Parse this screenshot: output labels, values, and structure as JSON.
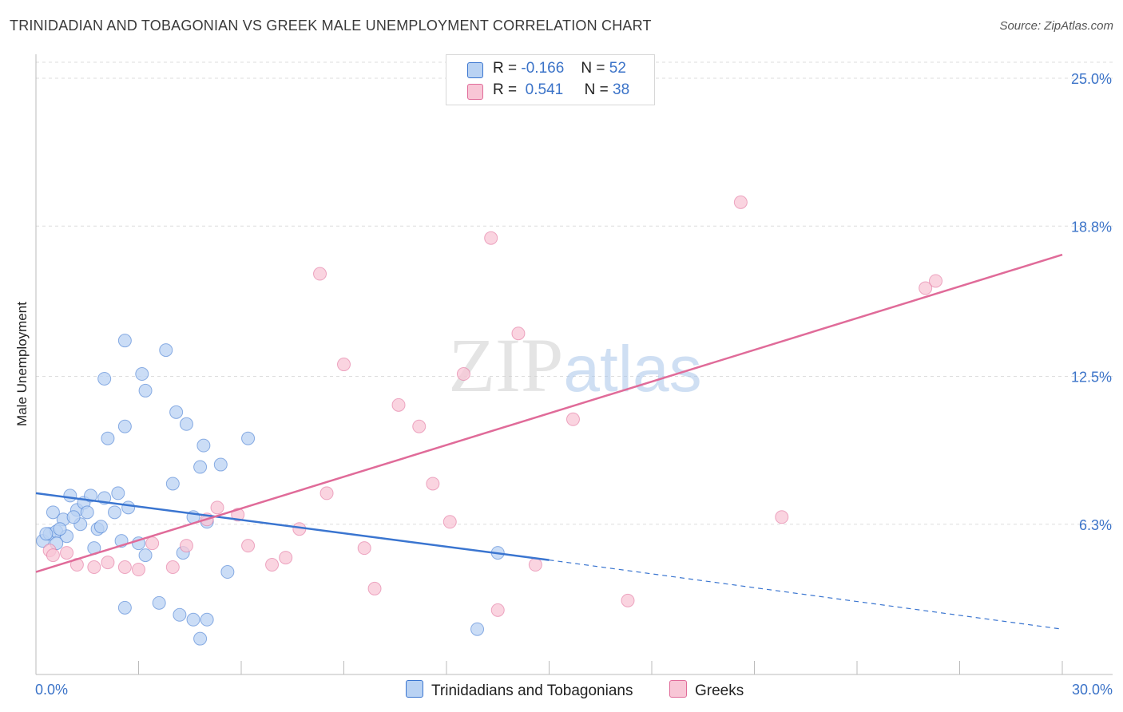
{
  "chart_data": {
    "type": "scatter",
    "title": "TRINIDADIAN AND TOBAGONIAN VS GREEK MALE UNEMPLOYMENT CORRELATION CHART",
    "source": "Source: ZipAtlas.com",
    "xlabel": "",
    "ylabel": "Male Unemployment",
    "xlim": [
      0,
      30
    ],
    "ylim": [
      0,
      25
    ],
    "x_tick_labels": [
      "0.0%",
      "30.0%"
    ],
    "y_ticks": [
      6.3,
      12.5,
      18.8,
      25.0
    ],
    "y_tick_labels": [
      "6.3%",
      "12.5%",
      "18.8%",
      "25.0%"
    ],
    "watermark": "ZIPatlas",
    "colors": {
      "blue": "#3a75d0",
      "blue_fill": "#b9d2f3",
      "pink": "#e06b99",
      "pink_fill": "#f8c6d6",
      "axis_text": "#3b73c8"
    },
    "legend": [
      {
        "r_label": "R =",
        "r_value": "-0.166",
        "n_label": "N =",
        "n_value": "52"
      },
      {
        "r_label": "R =",
        "r_value": "0.541",
        "n_label": "N =",
        "n_value": "38"
      }
    ],
    "series": [
      {
        "name": "Trinidadians and Tobagonians",
        "color": "#3a75d0",
        "trend": {
          "x0": 0,
          "y0": 7.6,
          "x1": 15,
          "y1": 4.8,
          "dash_to_x": 30,
          "dash_to_y": 1.9
        },
        "points": [
          [
            0.2,
            5.6
          ],
          [
            0.4,
            5.9
          ],
          [
            0.6,
            6.0
          ],
          [
            0.5,
            6.8
          ],
          [
            0.8,
            6.5
          ],
          [
            0.9,
            5.8
          ],
          [
            1.0,
            7.5
          ],
          [
            1.2,
            6.9
          ],
          [
            1.3,
            6.3
          ],
          [
            1.4,
            7.2
          ],
          [
            1.5,
            6.8
          ],
          [
            1.6,
            7.5
          ],
          [
            1.8,
            6.1
          ],
          [
            1.9,
            6.2
          ],
          [
            2.0,
            7.4
          ],
          [
            2.3,
            6.8
          ],
          [
            2.4,
            7.6
          ],
          [
            2.5,
            5.6
          ],
          [
            2.7,
            7.0
          ],
          [
            3.0,
            5.5
          ],
          [
            3.2,
            5.0
          ],
          [
            1.7,
            5.3
          ],
          [
            2.6,
            2.8
          ],
          [
            3.6,
            3.0
          ],
          [
            4.2,
            2.5
          ],
          [
            4.6,
            2.3
          ],
          [
            5.0,
            2.3
          ],
          [
            4.8,
            1.5
          ],
          [
            5.6,
            4.3
          ],
          [
            4.3,
            5.1
          ],
          [
            4.6,
            6.6
          ],
          [
            5.0,
            6.4
          ],
          [
            4.0,
            8.0
          ],
          [
            4.8,
            8.7
          ],
          [
            5.4,
            8.8
          ],
          [
            4.9,
            9.6
          ],
          [
            6.2,
            9.9
          ],
          [
            2.1,
            9.9
          ],
          [
            2.6,
            10.4
          ],
          [
            4.1,
            11.0
          ],
          [
            4.4,
            10.5
          ],
          [
            3.2,
            11.9
          ],
          [
            2.0,
            12.4
          ],
          [
            3.1,
            12.6
          ],
          [
            2.6,
            14.0
          ],
          [
            3.8,
            13.6
          ],
          [
            1.1,
            6.6
          ],
          [
            0.3,
            5.9
          ],
          [
            0.7,
            6.1
          ],
          [
            13.5,
            5.1
          ],
          [
            12.9,
            1.9
          ],
          [
            0.6,
            5.5
          ]
        ]
      },
      {
        "name": "Greeks",
        "color": "#e06b99",
        "trend": {
          "x0": 0,
          "y0": 4.3,
          "x1": 30,
          "y1": 17.6
        },
        "points": [
          [
            0.4,
            5.2
          ],
          [
            1.2,
            4.6
          ],
          [
            1.7,
            4.5
          ],
          [
            2.1,
            4.7
          ],
          [
            2.6,
            4.5
          ],
          [
            3.0,
            4.4
          ],
          [
            3.4,
            5.5
          ],
          [
            4.0,
            4.5
          ],
          [
            4.4,
            5.4
          ],
          [
            5.0,
            6.5
          ],
          [
            5.3,
            7.0
          ],
          [
            5.9,
            6.7
          ],
          [
            6.2,
            5.4
          ],
          [
            6.9,
            4.6
          ],
          [
            7.3,
            4.9
          ],
          [
            7.7,
            6.1
          ],
          [
            8.3,
            16.8
          ],
          [
            8.5,
            7.6
          ],
          [
            9.0,
            13.0
          ],
          [
            9.6,
            5.3
          ],
          [
            9.9,
            3.6
          ],
          [
            10.6,
            11.3
          ],
          [
            11.2,
            10.4
          ],
          [
            11.6,
            8.0
          ],
          [
            12.1,
            6.4
          ],
          [
            12.5,
            12.6
          ],
          [
            13.3,
            18.3
          ],
          [
            13.5,
            2.7
          ],
          [
            14.1,
            14.3
          ],
          [
            14.6,
            4.6
          ],
          [
            15.7,
            10.7
          ],
          [
            17.3,
            3.1
          ],
          [
            20.6,
            19.8
          ],
          [
            21.8,
            6.6
          ],
          [
            26.0,
            16.2
          ],
          [
            26.3,
            16.5
          ],
          [
            0.5,
            5.0
          ],
          [
            0.9,
            5.1
          ]
        ]
      }
    ]
  }
}
